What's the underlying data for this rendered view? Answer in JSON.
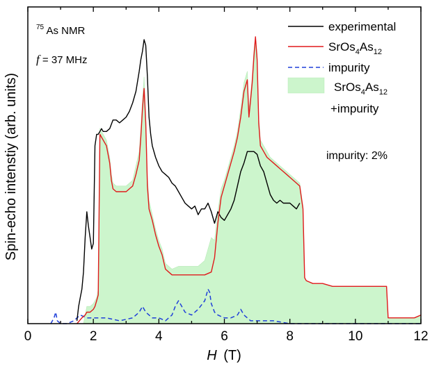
{
  "chart_data": {
    "type": "line",
    "xlabel_var": "H",
    "xlabel_unit": "(T)",
    "ylabel": "Spin-echo intenstiy (arb. units)",
    "xlim": [
      0,
      12
    ],
    "ylim": [
      0,
      1
    ],
    "x_ticks": [
      "0",
      "2",
      "4",
      "6",
      "8",
      "10",
      "12"
    ],
    "annotations": {
      "nucleus_sup": "75",
      "nucleus_main": "As NMR",
      "freq_var": "f",
      "freq_value": " = 37 MHz",
      "impurity_label": "impurity: 2%"
    },
    "legend": {
      "experimental": "experimental",
      "model_main_1": "SrOs",
      "model_sub_1": "4",
      "model_main_2": "As",
      "model_sub_2": "12",
      "impurity": "impurity",
      "combined_line2": "+impurity"
    },
    "colors": {
      "experimental": "#000000",
      "model": "#e0191b",
      "impurity": "#1f3fd9",
      "combined_fill": "#ccf5cc"
    },
    "series": [
      {
        "name": "experimental",
        "style": "solid",
        "x": [
          1.5,
          1.55,
          1.6,
          1.65,
          1.7,
          1.75,
          1.8,
          1.85,
          1.9,
          1.95,
          2.0,
          2.05,
          2.1,
          2.15,
          2.2,
          2.25,
          2.3,
          2.4,
          2.5,
          2.6,
          2.7,
          2.8,
          2.9,
          3.0,
          3.1,
          3.2,
          3.3,
          3.4,
          3.45,
          3.5,
          3.55,
          3.6,
          3.65,
          3.7,
          3.75,
          3.8,
          3.9,
          4.0,
          4.1,
          4.2,
          4.3,
          4.4,
          4.5,
          4.6,
          4.7,
          4.8,
          4.9,
          5.0,
          5.1,
          5.2,
          5.3,
          5.4,
          5.5,
          5.6,
          5.7,
          5.8,
          5.9,
          6.0,
          6.1,
          6.2,
          6.3,
          6.4,
          6.5,
          6.6,
          6.7,
          6.8,
          6.9,
          7.0,
          7.1,
          7.2,
          7.3,
          7.4,
          7.5,
          7.6,
          7.7,
          7.8,
          7.9,
          8.0,
          8.1,
          8.2,
          8.3
        ],
        "y": [
          0.01,
          0.06,
          0.09,
          0.12,
          0.18,
          0.3,
          0.39,
          0.34,
          0.3,
          0.26,
          0.28,
          0.62,
          0.66,
          0.66,
          0.67,
          0.68,
          0.67,
          0.67,
          0.68,
          0.71,
          0.71,
          0.7,
          0.71,
          0.72,
          0.74,
          0.77,
          0.81,
          0.88,
          0.92,
          0.95,
          0.99,
          0.97,
          0.86,
          0.72,
          0.66,
          0.62,
          0.58,
          0.55,
          0.53,
          0.52,
          0.51,
          0.49,
          0.48,
          0.46,
          0.44,
          0.42,
          0.41,
          0.4,
          0.41,
          0.38,
          0.4,
          0.4,
          0.42,
          0.39,
          0.35,
          0.39,
          0.37,
          0.36,
          0.38,
          0.4,
          0.43,
          0.48,
          0.53,
          0.56,
          0.6,
          0.6,
          0.6,
          0.59,
          0.55,
          0.53,
          0.49,
          0.45,
          0.43,
          0.42,
          0.43,
          0.42,
          0.42,
          0.42,
          0.41,
          0.4,
          0.42
        ]
      },
      {
        "name": "SrOs4As12",
        "style": "solid",
        "x": [
          1.5,
          1.65,
          1.75,
          1.8,
          1.9,
          2.0,
          2.05,
          2.1,
          2.15,
          2.2,
          2.3,
          2.4,
          2.5,
          2.55,
          2.6,
          2.7,
          2.8,
          2.9,
          3.0,
          3.1,
          3.2,
          3.3,
          3.4,
          3.45,
          3.5,
          3.55,
          3.6,
          3.65,
          3.7,
          3.8,
          3.9,
          4.0,
          4.1,
          4.2,
          4.3,
          4.4,
          4.6,
          4.8,
          5.0,
          5.2,
          5.4,
          5.6,
          5.7,
          5.8,
          5.9,
          6.0,
          6.1,
          6.2,
          6.3,
          6.4,
          6.5,
          6.6,
          6.7,
          6.75,
          6.8,
          6.85,
          6.9,
          6.95,
          7.0,
          7.05,
          7.1,
          7.2,
          7.3,
          7.4,
          7.5,
          7.6,
          7.7,
          7.8,
          7.9,
          8.0,
          8.1,
          8.2,
          8.3,
          8.4,
          8.45,
          8.5,
          8.7,
          9.0,
          9.3,
          9.6,
          10.0,
          10.4,
          10.8,
          10.95,
          11.0,
          11.2,
          11.5,
          11.8,
          12.0
        ],
        "y": [
          0.0,
          0.02,
          0.03,
          0.04,
          0.04,
          0.05,
          0.06,
          0.08,
          0.1,
          0.66,
          0.64,
          0.62,
          0.56,
          0.5,
          0.47,
          0.46,
          0.46,
          0.46,
          0.46,
          0.47,
          0.48,
          0.52,
          0.57,
          0.65,
          0.75,
          0.82,
          0.7,
          0.48,
          0.4,
          0.36,
          0.31,
          0.27,
          0.24,
          0.19,
          0.18,
          0.17,
          0.17,
          0.17,
          0.17,
          0.17,
          0.17,
          0.18,
          0.23,
          0.35,
          0.44,
          0.48,
          0.52,
          0.56,
          0.6,
          0.65,
          0.72,
          0.81,
          0.85,
          0.72,
          0.78,
          0.84,
          0.93,
          1.0,
          0.92,
          0.7,
          0.62,
          0.6,
          0.58,
          0.57,
          0.56,
          0.55,
          0.54,
          0.53,
          0.52,
          0.51,
          0.5,
          0.49,
          0.48,
          0.4,
          0.16,
          0.15,
          0.14,
          0.14,
          0.13,
          0.13,
          0.13,
          0.13,
          0.13,
          0.13,
          0.02,
          0.02,
          0.02,
          0.02,
          0.03
        ]
      },
      {
        "name": "impurity",
        "style": "dashed",
        "x": [
          0.7,
          0.8,
          0.85,
          0.9,
          1.0,
          1.2,
          1.4,
          1.6,
          1.8,
          2.0,
          2.4,
          2.8,
          3.2,
          3.4,
          3.5,
          3.6,
          3.7,
          3.8,
          4.0,
          4.2,
          4.4,
          4.5,
          4.6,
          4.7,
          4.8,
          5.0,
          5.2,
          5.4,
          5.5,
          5.55,
          5.6,
          5.7,
          5.8,
          6.0,
          6.2,
          6.4,
          6.5,
          6.6,
          6.8,
          7.0,
          7.5,
          8.0,
          9.0,
          10.0,
          11.0,
          12.0
        ],
        "y": [
          0.0,
          0.02,
          0.04,
          0.01,
          0.0,
          0.0,
          0.01,
          0.03,
          0.02,
          0.02,
          0.02,
          0.01,
          0.02,
          0.04,
          0.06,
          0.04,
          0.03,
          0.02,
          0.02,
          0.01,
          0.03,
          0.06,
          0.08,
          0.06,
          0.04,
          0.03,
          0.05,
          0.08,
          0.12,
          0.11,
          0.07,
          0.04,
          0.03,
          0.02,
          0.02,
          0.03,
          0.05,
          0.03,
          0.01,
          0.01,
          0.01,
          0.0,
          0.0,
          0.0,
          0.0,
          0.0
        ]
      },
      {
        "name": "SrOs4As12 +impurity",
        "style": "filled",
        "x": [
          1.7,
          1.8,
          1.9,
          2.0,
          2.05,
          2.1,
          2.15,
          2.2,
          2.3,
          2.4,
          2.5,
          2.55,
          2.6,
          2.7,
          2.8,
          2.9,
          3.0,
          3.1,
          3.2,
          3.3,
          3.4,
          3.45,
          3.5,
          3.55,
          3.6,
          3.65,
          3.7,
          3.8,
          3.9,
          4.0,
          4.1,
          4.2,
          4.3,
          4.4,
          4.6,
          4.8,
          5.0,
          5.2,
          5.4,
          5.5,
          5.6,
          5.7,
          5.8,
          5.9,
          6.0,
          6.1,
          6.2,
          6.3,
          6.4,
          6.5,
          6.6,
          6.7,
          6.75,
          6.8,
          6.85,
          6.9,
          6.95,
          7.0,
          7.05,
          7.1,
          7.2,
          7.3,
          7.4,
          7.5,
          7.6,
          7.7,
          7.8,
          7.9,
          8.0,
          8.1,
          8.2,
          8.3,
          8.4,
          8.45,
          8.5,
          8.7,
          9.0,
          9.3,
          9.6,
          10.0,
          10.4,
          10.8,
          10.95,
          11.0,
          11.2,
          11.5,
          11.8,
          12.0
        ],
        "y": [
          0.0,
          0.06,
          0.06,
          0.07,
          0.08,
          0.09,
          0.12,
          0.68,
          0.66,
          0.64,
          0.58,
          0.52,
          0.49,
          0.48,
          0.48,
          0.48,
          0.48,
          0.49,
          0.5,
          0.55,
          0.6,
          0.68,
          0.78,
          0.86,
          0.73,
          0.51,
          0.43,
          0.38,
          0.33,
          0.29,
          0.26,
          0.21,
          0.2,
          0.19,
          0.2,
          0.2,
          0.2,
          0.2,
          0.22,
          0.26,
          0.3,
          0.29,
          0.39,
          0.47,
          0.5,
          0.54,
          0.58,
          0.62,
          0.67,
          0.75,
          0.84,
          0.88,
          0.75,
          0.8,
          0.86,
          0.95,
          1.0,
          0.94,
          0.72,
          0.64,
          0.62,
          0.6,
          0.58,
          0.57,
          0.56,
          0.55,
          0.54,
          0.53,
          0.52,
          0.51,
          0.5,
          0.49,
          0.41,
          0.16,
          0.15,
          0.14,
          0.14,
          0.13,
          0.13,
          0.13,
          0.13,
          0.13,
          0.13,
          0.02,
          0.02,
          0.02,
          0.02,
          0.03
        ]
      }
    ]
  }
}
